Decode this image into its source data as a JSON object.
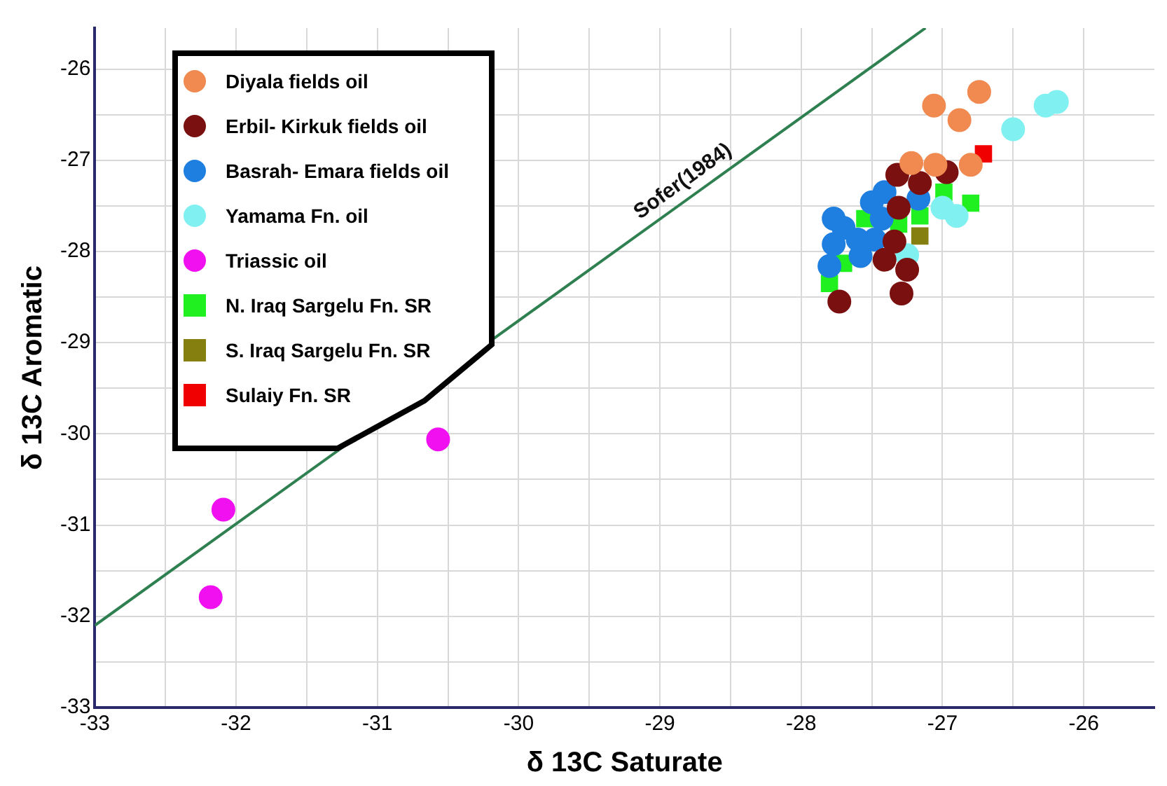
{
  "chart_data": {
    "type": "scatter",
    "xlabel": "δ 13C Saturate",
    "ylabel": "δ 13C Aromatic",
    "xlim": [
      -33,
      -25.5
    ],
    "ylim": [
      -33,
      -25.55
    ],
    "xticks": [
      -33,
      {
        "value": -32.5,
        "label": null
      },
      -32,
      {
        "value": -31.5,
        "label": null
      },
      -31,
      {
        "value": -30.5,
        "label": null
      },
      -30,
      {
        "value": -29.5,
        "label": null
      },
      -29,
      {
        "value": -28.5,
        "label": null
      },
      -28,
      {
        "value": -27.5,
        "label": null
      },
      -27,
      {
        "value": -26.5,
        "label": null
      },
      -26
    ],
    "yticks": [
      -33,
      {
        "value": -32.5,
        "label": null
      },
      -32,
      {
        "value": -31.5,
        "label": null
      },
      -31,
      {
        "value": -30.5,
        "label": null
      },
      -30,
      {
        "value": -29.5,
        "label": null
      },
      -29,
      {
        "value": -28.5,
        "label": null
      },
      -28,
      {
        "value": -27.5,
        "label": null
      },
      -27,
      {
        "value": -26.5,
        "label": null
      },
      -26
    ],
    "grid": true,
    "legend": "top left",
    "series": [
      {
        "name": "Diyala fields oil",
        "color": "#f08a50",
        "marker": "circle",
        "x": [
          -26.74,
          -27.06,
          -26.88,
          -27.22,
          -27.05,
          -26.8
        ],
        "values": [
          -26.25,
          -26.4,
          -26.56,
          -27.03,
          -27.05,
          -27.05
        ]
      },
      {
        "name": "Erbil- Kirkuk fields oil",
        "color": "#7a1010",
        "marker": "circle",
        "x": [
          -27.32,
          -26.97,
          -27.16,
          -27.31,
          -27.34,
          -27.41,
          -27.25,
          -27.73,
          -27.29
        ],
        "values": [
          -27.16,
          -27.13,
          -27.25,
          -27.52,
          -27.89,
          -28.09,
          -28.2,
          -28.55,
          -28.46
        ]
      },
      {
        "name": "Basrah- Emara fields oil",
        "color": "#1e7fe0",
        "marker": "circle",
        "x": [
          -27.77,
          -27.7,
          -27.41,
          -27.5,
          -27.17,
          -27.43,
          -27.77,
          -27.6,
          -27.48,
          -27.58,
          -27.8
        ],
        "values": [
          -27.64,
          -27.74,
          -27.35,
          -27.46,
          -27.42,
          -27.64,
          -27.92,
          -27.87,
          -27.87,
          -28.05,
          -28.16
        ]
      },
      {
        "name": "Yamama Fn. oil",
        "color": "#80f0f0",
        "marker": "circle",
        "x": [
          -26.19,
          -26.27,
          -26.5,
          -27,
          -26.9,
          -27.25
        ],
        "values": [
          -26.36,
          -26.4,
          -26.66,
          -27.52,
          -27.61,
          -28.04
        ]
      },
      {
        "name": "Triassic oil",
        "color": "#f010f0",
        "marker": "circle",
        "x": [
          -32.09,
          -32.18,
          -30.57
        ],
        "values": [
          -30.83,
          -31.79,
          -30.06
        ]
      },
      {
        "name": "N. Iraq Sargelu Fn. SR",
        "color": "#20f020",
        "marker": "square",
        "x": [
          -26.99,
          -26.8,
          -27.55,
          -27.31,
          -27.16,
          -27.7,
          -27.8
        ],
        "values": [
          -27.35,
          -27.47,
          -27.64,
          -27.7,
          -27.61,
          -28.13,
          -28.35
        ]
      },
      {
        "name": "S. Iraq Sargelu Fn. SR",
        "color": "#857f10",
        "marker": "square",
        "x": [
          -27.16
        ],
        "values": [
          -27.83
        ]
      },
      {
        "name": "Sulaiy Fn. SR",
        "color": "#f00000",
        "marker": "square",
        "x": [
          -26.71
        ],
        "values": [
          -26.93
        ]
      },
      {
        "name": "Sofer(1984)",
        "type": "line",
        "color": "#2f8050",
        "marker": "none",
        "x": [
          -33,
          -27.12
        ],
        "values": [
          -32.1,
          -25.55
        ]
      }
    ]
  }
}
